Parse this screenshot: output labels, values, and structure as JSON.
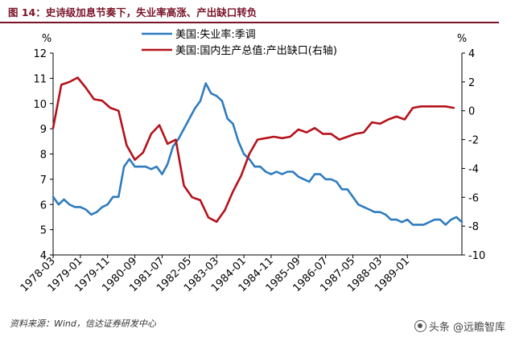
{
  "header": {
    "figure_title": "图 14：史诗级加息节奏下，失业率高涨、产出缺口转负",
    "title_color": "#7a1428"
  },
  "footer": {
    "source": "资料来源：Wind，信达证券研发中心",
    "watermark_label": "头条 @远瞻智库",
    "watermark_icon": "brand-logo-icon"
  },
  "chart_data": {
    "type": "line",
    "title": "",
    "grid": false,
    "legend_position": "top-center",
    "x": {
      "start": "1978-03",
      "end": "1990-09",
      "tick_labels": [
        "1978-03",
        "1979-01",
        "1979-11",
        "1980-09",
        "1981-07",
        "1982-05",
        "1983-03",
        "1984-01",
        "1984-11",
        "1985-09",
        "1986-07",
        "1987-05",
        "1988-03",
        "1989-01"
      ]
    },
    "y_left": {
      "unit_label": "%",
      "min": 4,
      "max": 12,
      "ticks": [
        "4",
        "5",
        "6",
        "7",
        "8",
        "9",
        "10",
        "11",
        "12"
      ]
    },
    "y_right": {
      "unit_label": "%",
      "min": -10,
      "max": 4,
      "ticks": [
        "-10",
        "-8",
        "-6",
        "-4",
        "-2",
        "0",
        "2",
        "4"
      ]
    },
    "series": [
      {
        "name": "美国:失业率:季调",
        "axis": "left",
        "color": "#2e7cbf",
        "points": [
          [
            "1978-03",
            6.3
          ],
          [
            "1978-05",
            6.0
          ],
          [
            "1978-07",
            6.2
          ],
          [
            "1978-09",
            6.0
          ],
          [
            "1978-11",
            5.9
          ],
          [
            "1979-01",
            5.9
          ],
          [
            "1979-03",
            5.8
          ],
          [
            "1979-05",
            5.6
          ],
          [
            "1979-07",
            5.7
          ],
          [
            "1979-09",
            5.9
          ],
          [
            "1979-11",
            6.0
          ],
          [
            "1980-01",
            6.3
          ],
          [
            "1980-03",
            6.3
          ],
          [
            "1980-05",
            7.5
          ],
          [
            "1980-07",
            7.8
          ],
          [
            "1980-09",
            7.5
          ],
          [
            "1980-11",
            7.5
          ],
          [
            "1981-01",
            7.5
          ],
          [
            "1981-03",
            7.4
          ],
          [
            "1981-05",
            7.5
          ],
          [
            "1981-07",
            7.2
          ],
          [
            "1981-09",
            7.6
          ],
          [
            "1981-11",
            8.3
          ],
          [
            "1982-01",
            8.6
          ],
          [
            "1982-03",
            9.0
          ],
          [
            "1982-05",
            9.4
          ],
          [
            "1982-07",
            9.8
          ],
          [
            "1982-09",
            10.1
          ],
          [
            "1982-11",
            10.8
          ],
          [
            "1983-01",
            10.4
          ],
          [
            "1983-03",
            10.3
          ],
          [
            "1983-05",
            10.1
          ],
          [
            "1983-07",
            9.4
          ],
          [
            "1983-09",
            9.2
          ],
          [
            "1983-11",
            8.5
          ],
          [
            "1984-01",
            8.0
          ],
          [
            "1984-03",
            7.8
          ],
          [
            "1984-05",
            7.5
          ],
          [
            "1984-07",
            7.5
          ],
          [
            "1984-09",
            7.3
          ],
          [
            "1984-11",
            7.2
          ],
          [
            "1985-01",
            7.3
          ],
          [
            "1985-03",
            7.2
          ],
          [
            "1985-05",
            7.3
          ],
          [
            "1985-07",
            7.3
          ],
          [
            "1985-09",
            7.1
          ],
          [
            "1985-11",
            7.0
          ],
          [
            "1986-01",
            6.9
          ],
          [
            "1986-03",
            7.2
          ],
          [
            "1986-05",
            7.2
          ],
          [
            "1986-07",
            7.0
          ],
          [
            "1986-09",
            7.0
          ],
          [
            "1986-11",
            6.9
          ],
          [
            "1987-01",
            6.6
          ],
          [
            "1987-03",
            6.6
          ],
          [
            "1987-05",
            6.3
          ],
          [
            "1987-07",
            6.0
          ],
          [
            "1987-09",
            5.9
          ],
          [
            "1987-11",
            5.8
          ],
          [
            "1988-01",
            5.7
          ],
          [
            "1988-03",
            5.7
          ],
          [
            "1988-05",
            5.6
          ],
          [
            "1988-07",
            5.4
          ],
          [
            "1988-09",
            5.4
          ],
          [
            "1988-11",
            5.3
          ],
          [
            "1989-01",
            5.4
          ],
          [
            "1989-03",
            5.2
          ],
          [
            "1989-05",
            5.2
          ],
          [
            "1989-07",
            5.2
          ],
          [
            "1989-09",
            5.3
          ],
          [
            "1989-11",
            5.4
          ],
          [
            "1990-01",
            5.4
          ],
          [
            "1990-03",
            5.2
          ],
          [
            "1990-05",
            5.4
          ],
          [
            "1990-07",
            5.5
          ],
          [
            "1990-09",
            5.3
          ]
        ]
      },
      {
        "name": "美国:国内生产总值:产出缺口(右轴)",
        "axis": "right",
        "color": "#b5121b",
        "points": [
          [
            "1978-03",
            -1.2
          ],
          [
            "1978-06",
            1.8
          ],
          [
            "1978-09",
            2.0
          ],
          [
            "1978-12",
            2.3
          ],
          [
            "1979-03",
            1.6
          ],
          [
            "1979-06",
            0.8
          ],
          [
            "1979-09",
            0.7
          ],
          [
            "1979-12",
            0.2
          ],
          [
            "1980-03",
            0.0
          ],
          [
            "1980-06",
            -2.4
          ],
          [
            "1980-09",
            -3.4
          ],
          [
            "1980-12",
            -2.9
          ],
          [
            "1981-03",
            -1.6
          ],
          [
            "1981-06",
            -1.0
          ],
          [
            "1981-09",
            -2.3
          ],
          [
            "1981-12",
            -2.0
          ],
          [
            "1982-03",
            -5.2
          ],
          [
            "1982-06",
            -6.0
          ],
          [
            "1982-09",
            -6.2
          ],
          [
            "1982-12",
            -7.4
          ],
          [
            "1983-03",
            -7.7
          ],
          [
            "1983-06",
            -6.9
          ],
          [
            "1983-09",
            -5.6
          ],
          [
            "1983-12",
            -4.5
          ],
          [
            "1984-03",
            -3.0
          ],
          [
            "1984-06",
            -2.0
          ],
          [
            "1984-09",
            -1.9
          ],
          [
            "1984-12",
            -1.8
          ],
          [
            "1985-03",
            -1.9
          ],
          [
            "1985-06",
            -1.8
          ],
          [
            "1985-09",
            -1.3
          ],
          [
            "1985-12",
            -1.5
          ],
          [
            "1986-03",
            -1.2
          ],
          [
            "1986-06",
            -1.6
          ],
          [
            "1986-09",
            -1.6
          ],
          [
            "1986-12",
            -2.0
          ],
          [
            "1987-03",
            -1.8
          ],
          [
            "1987-06",
            -1.6
          ],
          [
            "1987-09",
            -1.5
          ],
          [
            "1987-12",
            -0.8
          ],
          [
            "1988-03",
            -0.9
          ],
          [
            "1988-06",
            -0.6
          ],
          [
            "1988-09",
            -0.4
          ],
          [
            "1988-12",
            -0.6
          ],
          [
            "1989-03",
            0.2
          ],
          [
            "1989-06",
            0.3
          ],
          [
            "1989-09",
            0.3
          ],
          [
            "1989-12",
            0.3
          ],
          [
            "1990-03",
            0.3
          ],
          [
            "1990-06",
            0.2
          ]
        ]
      }
    ]
  }
}
